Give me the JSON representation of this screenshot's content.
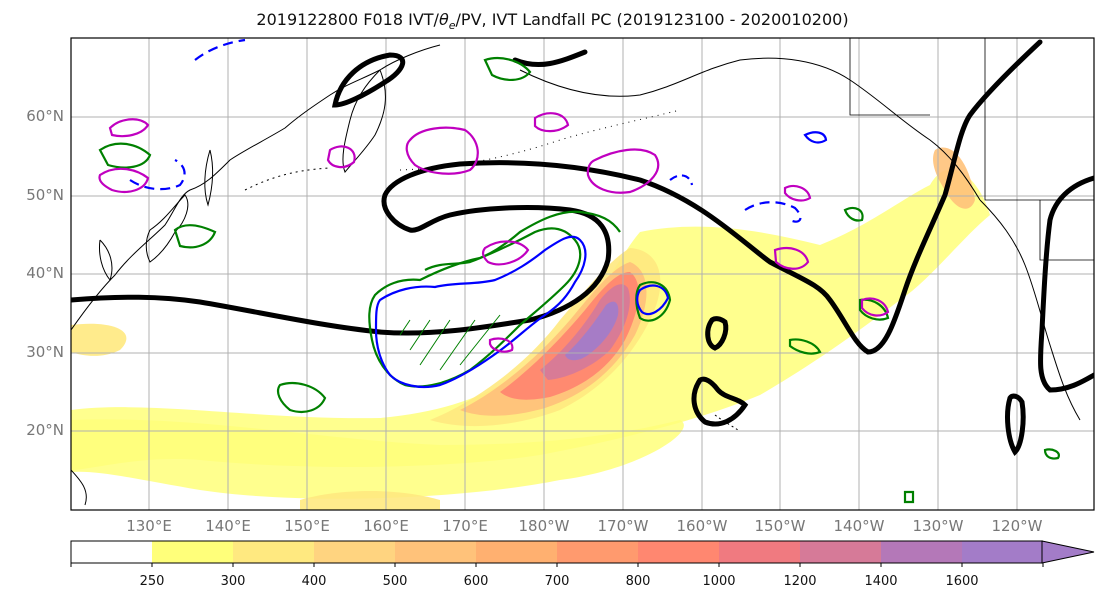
{
  "title_prefix": "2019122800 F018 IVT/",
  "title_theta": "θ",
  "title_sub": "e",
  "title_suffix": "/PV, IVT Landfall PC (2019123100 - 2020010200)",
  "lat_labels": [
    "60°N",
    "50°N",
    "40°N",
    "30°N",
    "20°N"
  ],
  "lon_labels": [
    "130°E",
    "140°E",
    "150°E",
    "160°E",
    "170°E",
    "180°W",
    "170°W",
    "160°W",
    "150°W",
    "140°W",
    "130°W",
    "120°W"
  ],
  "colorbar": {
    "levels": [
      "250",
      "300",
      "400",
      "500",
      "600",
      "700",
      "800",
      "1000",
      "1200",
      "1400",
      "1600"
    ],
    "colors": [
      "#ffffff",
      "#ffff7a",
      "#ffe980",
      "#ffd480",
      "#ffc27a",
      "#ffb070",
      "#ff9a6e",
      "#ff8770",
      "#f07a80",
      "#d67a98",
      "#b478b8",
      "#a37cc8"
    ]
  },
  "contour_colors": {
    "pc_line": "#000000",
    "green": "#008000",
    "blue": "#0000ff",
    "magenta": "#c000c0",
    "coast": "#000000",
    "grid": "#b0b0b0"
  }
}
